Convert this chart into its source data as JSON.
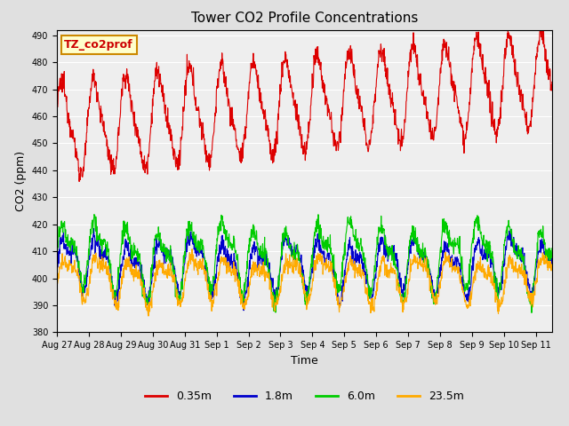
{
  "title": "Tower CO2 Profile Concentrations",
  "xlabel": "Time",
  "ylabel": "CO2 (ppm)",
  "ylim": [
    380,
    492
  ],
  "yticks": [
    380,
    390,
    400,
    410,
    420,
    430,
    440,
    450,
    460,
    470,
    480,
    490
  ],
  "xtick_labels": [
    "Aug 27",
    "Aug 28",
    "Aug 29",
    "Aug 30",
    "Aug 31",
    "Sep 1",
    "Sep 2",
    "Sep 3",
    "Sep 4",
    "Sep 5",
    "Sep 6",
    "Sep 7",
    "Sep 8",
    "Sep 9",
    "Sep 10",
    "Sep 11"
  ],
  "annotation_text": "TZ_co2prof",
  "annotation_bg": "#ffffcc",
  "annotation_border": "#cc8800",
  "colors": {
    "0.35m": "#dd0000",
    "1.8m": "#0000cc",
    "6.0m": "#00cc00",
    "23.5m": "#ffaa00"
  },
  "bg_color": "#e0e0e0",
  "plot_bg": "#eeeeee",
  "n_days": 15.5,
  "pts_per_day": 96,
  "title_fontsize": 11,
  "axis_label_fontsize": 9,
  "tick_fontsize": 7,
  "legend_fontsize": 9
}
